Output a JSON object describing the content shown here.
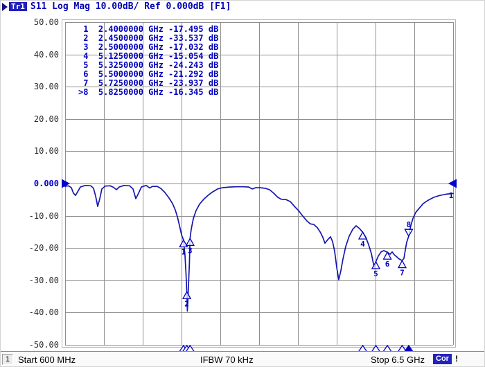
{
  "header": {
    "trace_badge": "Tr1",
    "title": "S11 Log Mag 10.00dB/ Ref 0.000dB [F1]"
  },
  "status_bar": {
    "channel": "1",
    "start": "Start 600 MHz",
    "ifbw": "IFBW 70 kHz",
    "stop": "Stop 6.5 GHz",
    "cor": "Cor",
    "alert": "!"
  },
  "chart_data": {
    "type": "line",
    "title": "S11 Log Mag",
    "grid": true,
    "legend": "none",
    "trace_number": "1",
    "x_axis": {
      "start_ghz": 0.6,
      "stop_ghz": 6.5,
      "divisions": 10
    },
    "y_axis": {
      "top_db": 50,
      "bottom_db": -50,
      "db_per_div": 10,
      "ref_db": 0,
      "tick_labels": [
        "50.00",
        "40.00",
        "30.00",
        "20.00",
        "10.00",
        "0.000",
        "-10.00",
        "-20.00",
        "-30.00",
        "-40.00",
        "-50.00"
      ],
      "ref_label_index": 5
    },
    "series": [
      {
        "name": "S11",
        "points": [
          [
            0.6,
            -0.9
          ],
          [
            0.65,
            -0.7
          ],
          [
            0.695,
            -1.3
          ],
          [
            0.726,
            -3.0
          ],
          [
            0.758,
            -3.7
          ],
          [
            0.79,
            -2.6
          ],
          [
            0.832,
            -1.1
          ],
          [
            0.906,
            -0.6
          ],
          [
            0.99,
            -0.7
          ],
          [
            1.032,
            -1.5
          ],
          [
            1.064,
            -3.9
          ],
          [
            1.095,
            -7.1
          ],
          [
            1.127,
            -4.7
          ],
          [
            1.158,
            -1.7
          ],
          [
            1.211,
            -0.8
          ],
          [
            1.285,
            -0.7
          ],
          [
            1.338,
            -1.2
          ],
          [
            1.38,
            -1.9
          ],
          [
            1.422,
            -1.1
          ],
          [
            1.496,
            -0.6
          ],
          [
            1.58,
            -0.7
          ],
          [
            1.633,
            -1.7
          ],
          [
            1.675,
            -4.7
          ],
          [
            1.717,
            -3.0
          ],
          [
            1.759,
            -1.1
          ],
          [
            1.833,
            -0.6
          ],
          [
            1.885,
            -1.4
          ],
          [
            1.928,
            -0.9
          ],
          [
            2.001,
            -0.9
          ],
          [
            2.054,
            -1.5
          ],
          [
            2.117,
            -2.8
          ],
          [
            2.18,
            -4.5
          ],
          [
            2.233,
            -6.2
          ],
          [
            2.275,
            -8.2
          ],
          [
            2.307,
            -10.3
          ],
          [
            2.339,
            -13.1
          ],
          [
            2.37,
            -15.9
          ],
          [
            2.4,
            -17.5
          ],
          [
            2.423,
            -22.3
          ],
          [
            2.439,
            -28.1
          ],
          [
            2.45,
            -33.5
          ],
          [
            2.458,
            -39.5
          ],
          [
            2.468,
            -35.6
          ],
          [
            2.478,
            -30.3
          ],
          [
            2.49,
            -24.5
          ],
          [
            2.5,
            -17.0
          ],
          [
            2.518,
            -14.2
          ],
          [
            2.549,
            -10.9
          ],
          [
            2.591,
            -8.4
          ],
          [
            2.644,
            -6.4
          ],
          [
            2.707,
            -4.9
          ],
          [
            2.771,
            -3.7
          ],
          [
            2.844,
            -2.6
          ],
          [
            2.918,
            -1.7
          ],
          [
            2.992,
            -1.3
          ],
          [
            3.097,
            -1.1
          ],
          [
            3.203,
            -1.0
          ],
          [
            3.308,
            -1.0
          ],
          [
            3.392,
            -1.1
          ],
          [
            3.445,
            -1.7
          ],
          [
            3.497,
            -1.3
          ],
          [
            3.571,
            -1.3
          ],
          [
            3.645,
            -1.5
          ],
          [
            3.708,
            -1.9
          ],
          [
            3.771,
            -3.0
          ],
          [
            3.834,
            -4.3
          ],
          [
            3.887,
            -4.9
          ],
          [
            3.961,
            -5.0
          ],
          [
            4.024,
            -5.6
          ],
          [
            4.087,
            -7.1
          ],
          [
            4.15,
            -8.4
          ],
          [
            4.214,
            -10.1
          ],
          [
            4.277,
            -11.6
          ],
          [
            4.329,
            -12.5
          ],
          [
            4.382,
            -12.7
          ],
          [
            4.435,
            -13.7
          ],
          [
            4.477,
            -15.0
          ],
          [
            4.519,
            -16.7
          ],
          [
            4.551,
            -18.5
          ],
          [
            4.593,
            -17.4
          ],
          [
            4.635,
            -16.5
          ],
          [
            4.667,
            -18.0
          ],
          [
            4.698,
            -21.0
          ],
          [
            4.73,
            -26.0
          ],
          [
            4.761,
            -29.8
          ],
          [
            4.793,
            -27.0
          ],
          [
            4.825,
            -23.4
          ],
          [
            4.867,
            -19.5
          ],
          [
            4.92,
            -16.3
          ],
          [
            4.973,
            -14.2
          ],
          [
            5.025,
            -13.1
          ],
          [
            5.078,
            -14.0
          ],
          [
            5.125,
            -15.1
          ],
          [
            5.172,
            -16.7
          ],
          [
            5.214,
            -18.9
          ],
          [
            5.257,
            -21.7
          ],
          [
            5.288,
            -24.9
          ],
          [
            5.31,
            -26.3
          ],
          [
            5.325,
            -24.2
          ],
          [
            5.362,
            -22.5
          ],
          [
            5.404,
            -21.2
          ],
          [
            5.446,
            -20.8
          ],
          [
            5.5,
            -21.3
          ],
          [
            5.541,
            -21.9
          ],
          [
            5.573,
            -21.2
          ],
          [
            5.605,
            -22.1
          ],
          [
            5.647,
            -22.8
          ],
          [
            5.679,
            -23.4
          ],
          [
            5.725,
            -23.9
          ],
          [
            5.752,
            -23.2
          ],
          [
            5.773,
            -20.6
          ],
          [
            5.794,
            -18.2
          ],
          [
            5.825,
            -16.3
          ],
          [
            5.856,
            -13.1
          ],
          [
            5.888,
            -10.9
          ],
          [
            5.93,
            -9.0
          ],
          [
            5.983,
            -7.7
          ],
          [
            6.046,
            -6.2
          ],
          [
            6.12,
            -5.2
          ],
          [
            6.204,
            -4.3
          ],
          [
            6.299,
            -3.7
          ],
          [
            6.394,
            -3.3
          ],
          [
            6.5,
            -3.1
          ]
        ]
      }
    ],
    "markers": [
      {
        "id": "1",
        "ghz": 2.4,
        "db": -17.495,
        "freq": "2.4000000",
        "freq_unit": "GHz",
        "value": "-17.495",
        "value_unit": "dB",
        "active": false
      },
      {
        "id": "2",
        "ghz": 2.45,
        "db": -33.537,
        "freq": "2.4500000",
        "freq_unit": "GHz",
        "value": "-33.537",
        "value_unit": "dB",
        "active": false
      },
      {
        "id": "3",
        "ghz": 2.5,
        "db": -17.032,
        "freq": "2.5000000",
        "freq_unit": "GHz",
        "value": "-17.032",
        "value_unit": "dB",
        "active": false
      },
      {
        "id": "4",
        "ghz": 5.125,
        "db": -15.054,
        "freq": "5.1250000",
        "freq_unit": "GHz",
        "value": "-15.054",
        "value_unit": "dB",
        "active": false
      },
      {
        "id": "5",
        "ghz": 5.325,
        "db": -24.243,
        "freq": "5.3250000",
        "freq_unit": "GHz",
        "value": "-24.243",
        "value_unit": "dB",
        "active": false
      },
      {
        "id": "6",
        "ghz": 5.5,
        "db": -21.292,
        "freq": "5.5000000",
        "freq_unit": "GHz",
        "value": "-21.292",
        "value_unit": "dB",
        "active": false
      },
      {
        "id": "7",
        "ghz": 5.725,
        "db": -23.937,
        "freq": "5.7250000",
        "freq_unit": "GHz",
        "value": "-23.937",
        "value_unit": "dB",
        "active": false
      },
      {
        "id": "8",
        "ghz": 5.825,
        "db": -16.345,
        "freq": "5.8250000",
        "freq_unit": "GHz",
        "value": "-16.345",
        "value_unit": "dB",
        "active": true
      }
    ],
    "colors": {
      "trace": "#1717ae",
      "grid": "#8f8f8f",
      "frame": "#b4b4b4",
      "marker_blue": "#0000be",
      "axis_text": "#2b2b2b",
      "ref_text": "#0000cc",
      "badge_bg": "#2020bc"
    }
  }
}
